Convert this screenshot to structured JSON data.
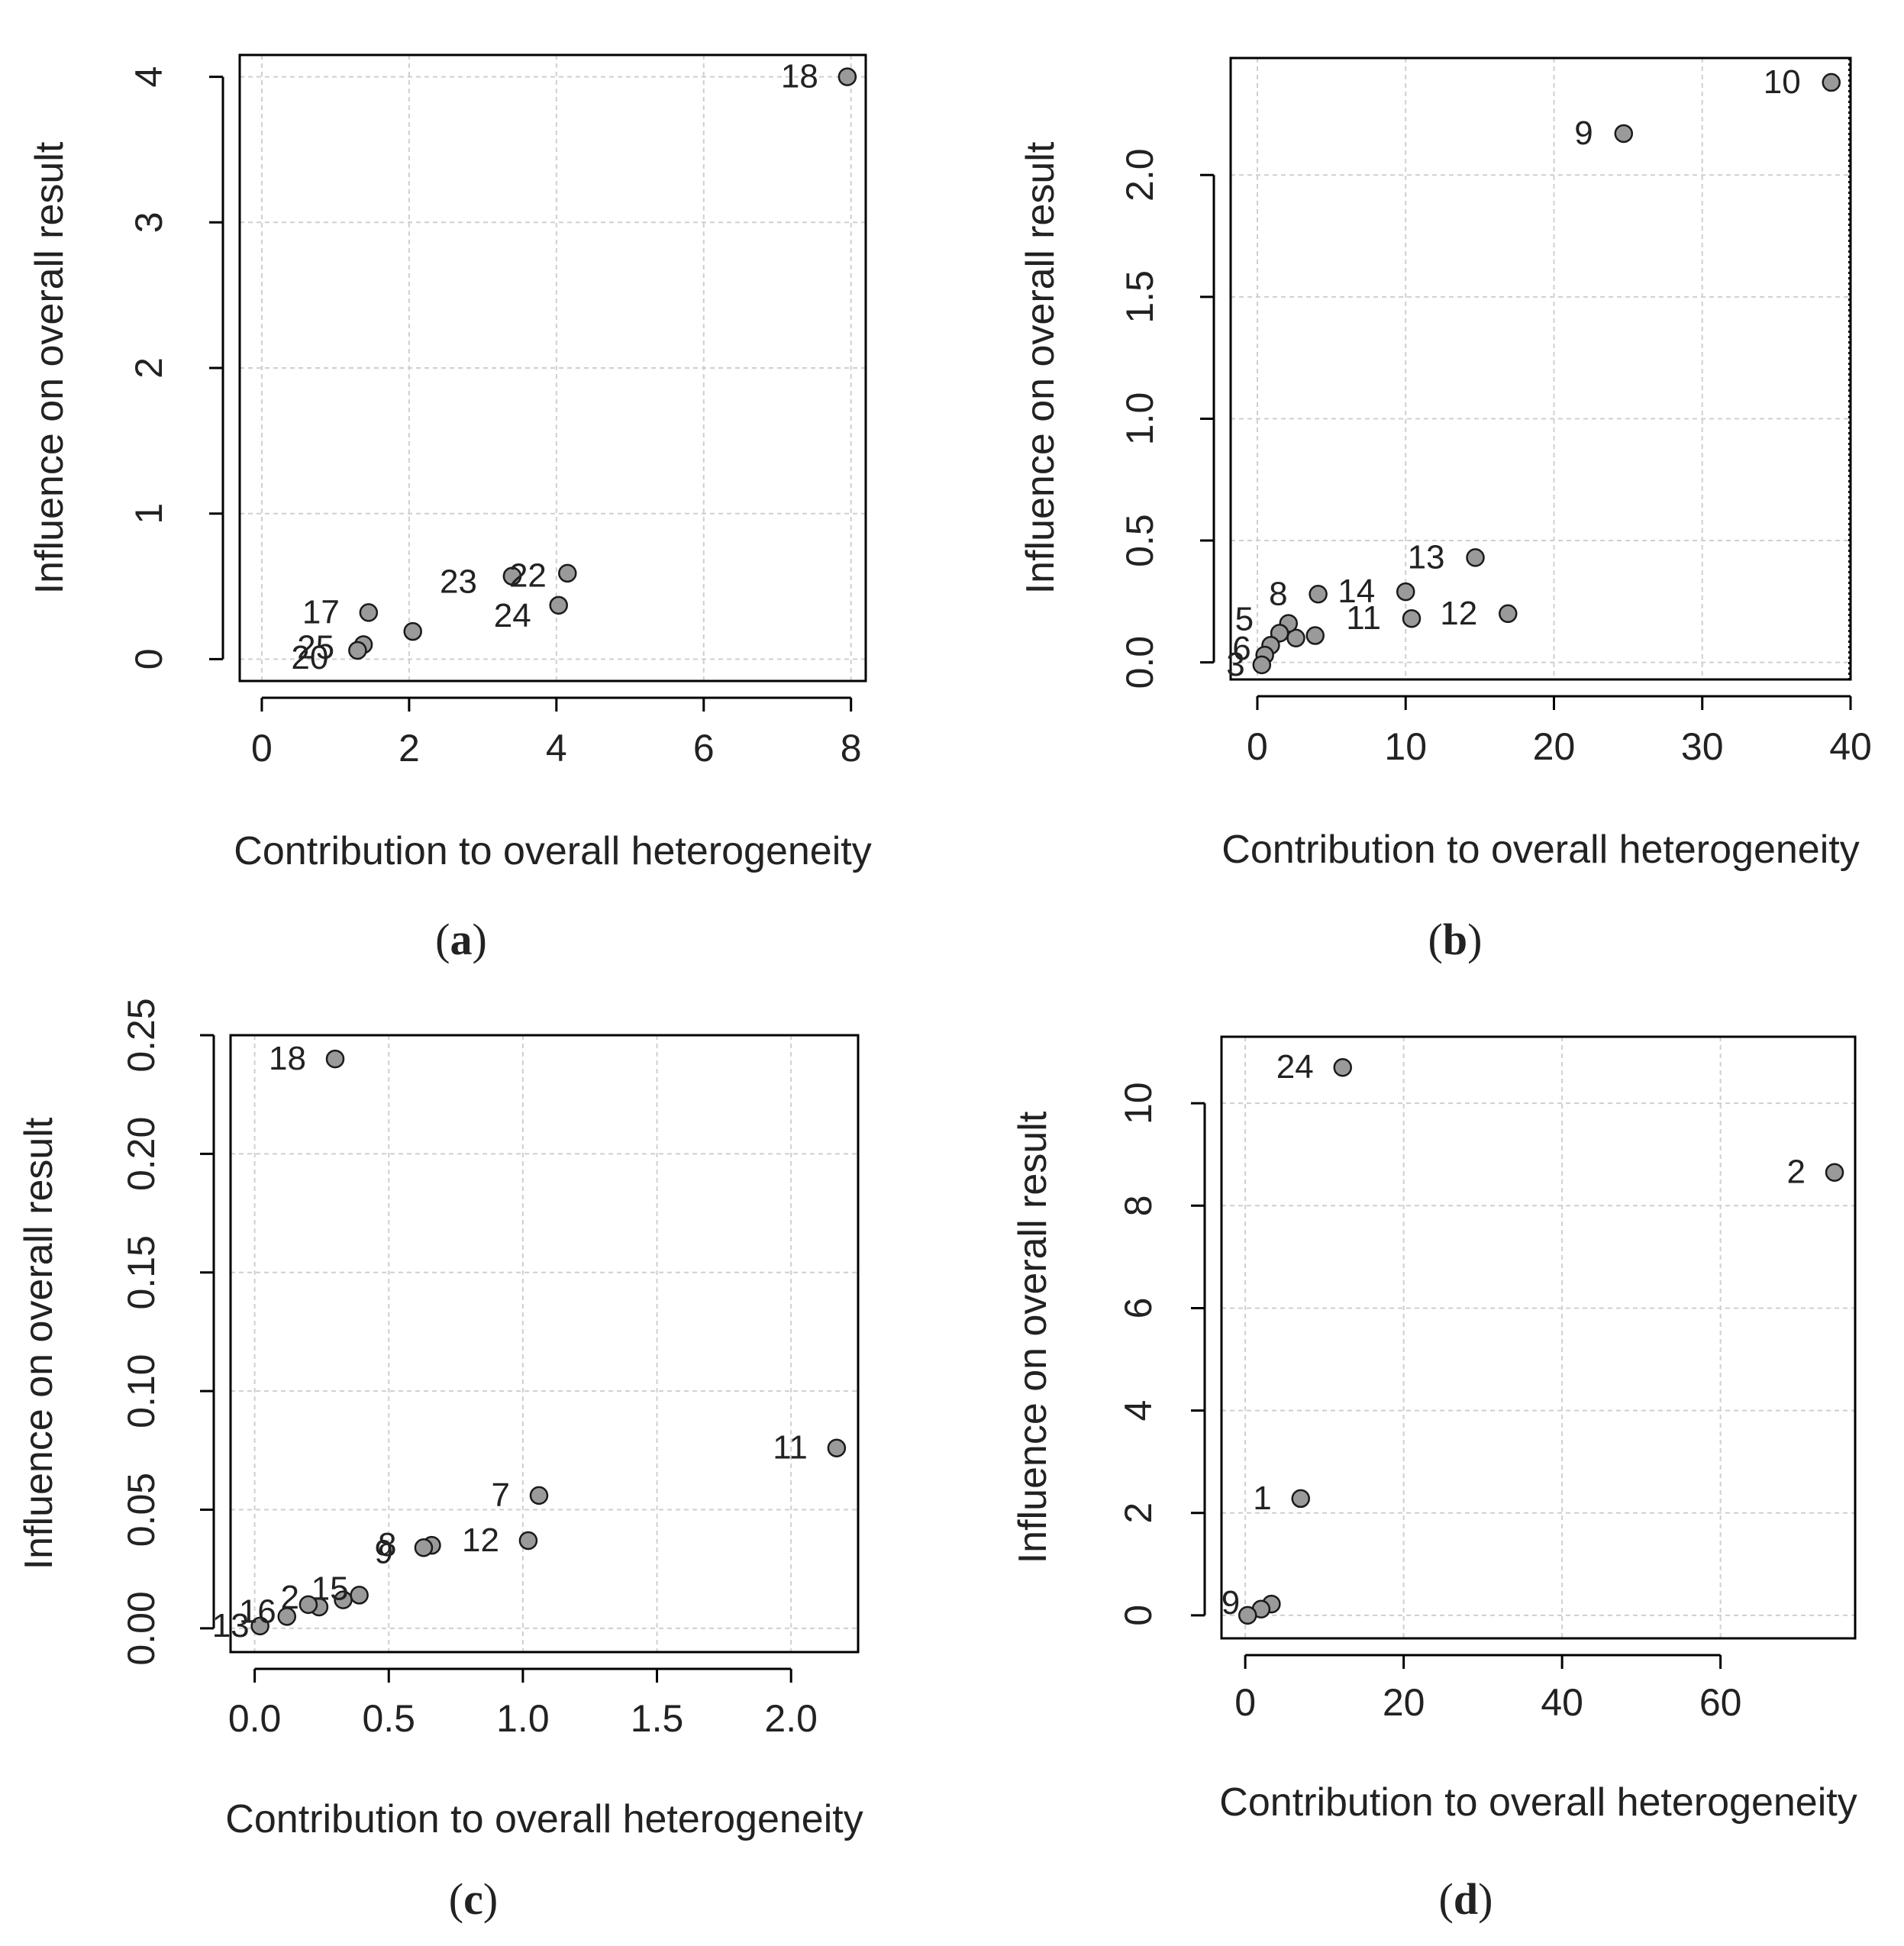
{
  "figure": {
    "panels": [
      {
        "caption_paren_open": "(",
        "caption_letter": "a",
        "caption_paren_close": ")"
      },
      {
        "caption_paren_open": "(",
        "caption_letter": "b",
        "caption_paren_close": ")"
      },
      {
        "caption_paren_open": "(",
        "caption_letter": "c",
        "caption_paren_close": ")"
      },
      {
        "caption_paren_open": "(",
        "caption_letter": "d",
        "caption_paren_close": ")"
      }
    ]
  },
  "colors": {
    "point_fill": "#9a9a9a",
    "point_stroke": "#1a1a1a",
    "grid": "#cfcfcf",
    "frame": "#000000",
    "text": "#222222",
    "label_highlight": "#1f5fa8"
  },
  "chart_data": [
    {
      "type": "scatter",
      "title": "",
      "xlabel": "Contribution to overall heterogeneity",
      "ylabel": "Influence on overall result",
      "xlim": [
        -0.3,
        8.2
      ],
      "ylim": [
        -0.15,
        4.15
      ],
      "xticks": [
        0,
        2,
        4,
        6,
        8
      ],
      "xtick_labels": [
        "0",
        "2",
        "4",
        "6",
        "8"
      ],
      "yticks": [
        0,
        1,
        2,
        3,
        4
      ],
      "ytick_labels": [
        "0",
        "1",
        "2",
        "3",
        "4"
      ],
      "grid": true,
      "points": [
        {
          "x": 7.95,
          "y": 4.0,
          "label": "18"
        },
        {
          "x": 4.15,
          "y": 0.59,
          "label": ""
        },
        {
          "x": 3.4,
          "y": 0.57,
          "label": "22"
        },
        {
          "x": 3.4,
          "y": 0.57,
          "label": "23"
        },
        {
          "x": 4.03,
          "y": 0.37,
          "label": "24"
        },
        {
          "x": 2.05,
          "y": 0.19,
          "label": ""
        },
        {
          "x": 1.45,
          "y": 0.32,
          "label": "17"
        },
        {
          "x": 1.38,
          "y": 0.1,
          "label": "25"
        },
        {
          "x": 1.3,
          "y": 0.06,
          "label": "20"
        }
      ]
    },
    {
      "type": "scatter",
      "title": "",
      "xlabel": "Contribution to overall heterogeneity",
      "ylabel": "Influence on overall result",
      "xlim": [
        -1.8,
        40
      ],
      "ylim": [
        -0.07,
        2.48
      ],
      "xticks": [
        0,
        10,
        20,
        30,
        40
      ],
      "xtick_labels": [
        "0",
        "10",
        "20",
        "30",
        "40"
      ],
      "yticks": [
        0.0,
        0.5,
        1.0,
        1.5,
        2.0
      ],
      "ytick_labels": [
        "0.0",
        "0.5",
        "1.0",
        "1.5",
        "2.0"
      ],
      "grid": true,
      "points": [
        {
          "x": 38.7,
          "y": 2.38,
          "label": "10"
        },
        {
          "x": 24.7,
          "y": 2.17,
          "label": "9"
        },
        {
          "x": 14.7,
          "y": 0.43,
          "label": "13"
        },
        {
          "x": 10.0,
          "y": 0.29,
          "label": "14"
        },
        {
          "x": 4.1,
          "y": 0.28,
          "label": "8"
        },
        {
          "x": 16.9,
          "y": 0.2,
          "label": "12"
        },
        {
          "x": 10.4,
          "y": 0.18,
          "label": "11"
        },
        {
          "x": 3.9,
          "y": 0.11,
          "label": ""
        },
        {
          "x": 2.6,
          "y": 0.1,
          "label": ""
        },
        {
          "x": 2.1,
          "y": 0.16,
          "label": ""
        },
        {
          "x": 1.5,
          "y": 0.12,
          "label": "5"
        },
        {
          "x": 0.9,
          "y": 0.07,
          "label": ""
        },
        {
          "x": 0.5,
          "y": 0.03,
          "label": "6"
        },
        {
          "x": 0.3,
          "y": -0.01,
          "label": "3"
        }
      ]
    },
    {
      "type": "scatter",
      "title": "",
      "xlabel": "Contribution to overall heterogeneity",
      "ylabel": "Influence on overall result",
      "xlim": [
        -0.09,
        2.25
      ],
      "ylim": [
        -0.01,
        0.25
      ],
      "xticks": [
        0.0,
        0.5,
        1.0,
        1.5,
        2.0
      ],
      "xtick_labels": [
        "0.0",
        "0.5",
        "1.0",
        "1.5",
        "2.0"
      ],
      "yticks": [
        0.0,
        0.05,
        0.1,
        0.15,
        0.2,
        0.25
      ],
      "ytick_labels": [
        "0.00",
        "0.05",
        "0.10",
        "0.15",
        "0.20",
        "0.25"
      ],
      "grid": true,
      "points": [
        {
          "x": 0.3,
          "y": 0.24,
          "label": "18"
        },
        {
          "x": 2.17,
          "y": 0.076,
          "label": "11"
        },
        {
          "x": 1.06,
          "y": 0.056,
          "label": "7"
        },
        {
          "x": 1.02,
          "y": 0.037,
          "label": "12"
        },
        {
          "x": 0.66,
          "y": 0.035,
          "label": "8"
        },
        {
          "x": 0.63,
          "y": 0.034,
          "label": "9"
        },
        {
          "x": 0.39,
          "y": 0.014,
          "label": "15"
        },
        {
          "x": 0.33,
          "y": 0.012,
          "label": ""
        },
        {
          "x": 0.24,
          "y": 0.009,
          "label": "2"
        },
        {
          "x": 0.2,
          "y": 0.01,
          "label": ""
        },
        {
          "x": 0.12,
          "y": 0.005,
          "label": "16"
        },
        {
          "x": 0.02,
          "y": 0.001,
          "label": "13"
        }
      ]
    },
    {
      "type": "scatter",
      "title": "",
      "xlabel": "Contribution to overall heterogeneity",
      "ylabel": "Influence on overall result",
      "xlim": [
        -3,
        77
      ],
      "ylim": [
        -0.45,
        11.3
      ],
      "xticks": [
        0,
        20,
        40,
        60
      ],
      "xtick_labels": [
        "0",
        "20",
        "40",
        "60"
      ],
      "yticks": [
        0,
        2,
        4,
        6,
        8,
        10
      ],
      "ytick_labels": [
        "0",
        "2",
        "4",
        "6",
        "8",
        "10"
      ],
      "grid": true,
      "points": [
        {
          "x": 12.3,
          "y": 10.7,
          "label": "24"
        },
        {
          "x": 74.4,
          "y": 8.65,
          "label": "2"
        },
        {
          "x": 7.0,
          "y": 2.28,
          "label": "1"
        },
        {
          "x": 3.3,
          "y": 0.22,
          "label": ""
        },
        {
          "x": 2.0,
          "y": 0.12,
          "label": ""
        },
        {
          "x": 0.3,
          "y": 0.0,
          "label": "9"
        }
      ]
    }
  ]
}
